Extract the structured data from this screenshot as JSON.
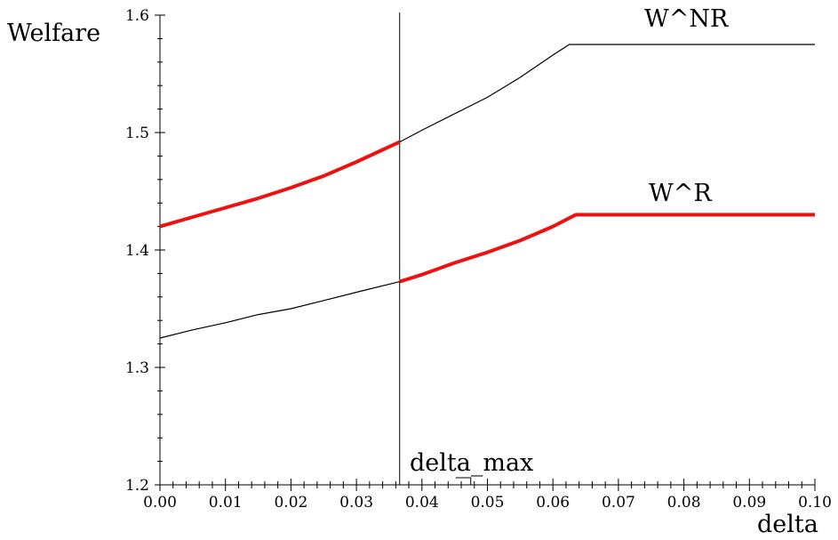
{
  "chart_data": {
    "type": "line",
    "ylabel": "Welfare",
    "xlabel": "delta",
    "xlim": [
      0,
      0.1
    ],
    "ylim": [
      1.2,
      1.6
    ],
    "x_ticks": [
      "0.00",
      "0.01",
      "0.02",
      "0.03",
      "0.04",
      "0.05",
      "0.06",
      "0.07",
      "0.08",
      "0.09",
      "0.10"
    ],
    "y_ticks": [
      "1.2",
      "1.3",
      "1.4",
      "1.5",
      "1.6"
    ],
    "vline": {
      "x": 0.0366,
      "label": "delta_max"
    },
    "grid": false,
    "legend": "none",
    "series": [
      {
        "name": "W^NR",
        "x": [
          0,
          0.005,
          0.01,
          0.015,
          0.02,
          0.025,
          0.03,
          0.0366,
          0.04,
          0.045,
          0.05,
          0.055,
          0.06,
          0.0625,
          0.07,
          0.08,
          0.09,
          0.1
        ],
        "y": [
          1.42,
          1.428,
          1.436,
          1.444,
          1.453,
          1.463,
          1.475,
          1.492,
          1.502,
          1.516,
          1.53,
          1.547,
          1.566,
          1.575,
          1.575,
          1.575,
          1.575,
          1.575
        ],
        "highlight_x_range": [
          0,
          0.0366
        ],
        "highlight_color": "#ee1111"
      },
      {
        "name": "W^R",
        "x": [
          0,
          0.005,
          0.01,
          0.015,
          0.02,
          0.025,
          0.03,
          0.0366,
          0.04,
          0.045,
          0.05,
          0.055,
          0.06,
          0.0635,
          0.07,
          0.08,
          0.09,
          0.1
        ],
        "y": [
          1.325,
          1.332,
          1.338,
          1.345,
          1.35,
          1.357,
          1.364,
          1.373,
          1.379,
          1.389,
          1.398,
          1.408,
          1.42,
          1.43,
          1.43,
          1.43,
          1.43,
          1.43
        ],
        "highlight_x_range": [
          0.0366,
          0.1
        ],
        "highlight_color": "#ee1111"
      }
    ]
  }
}
